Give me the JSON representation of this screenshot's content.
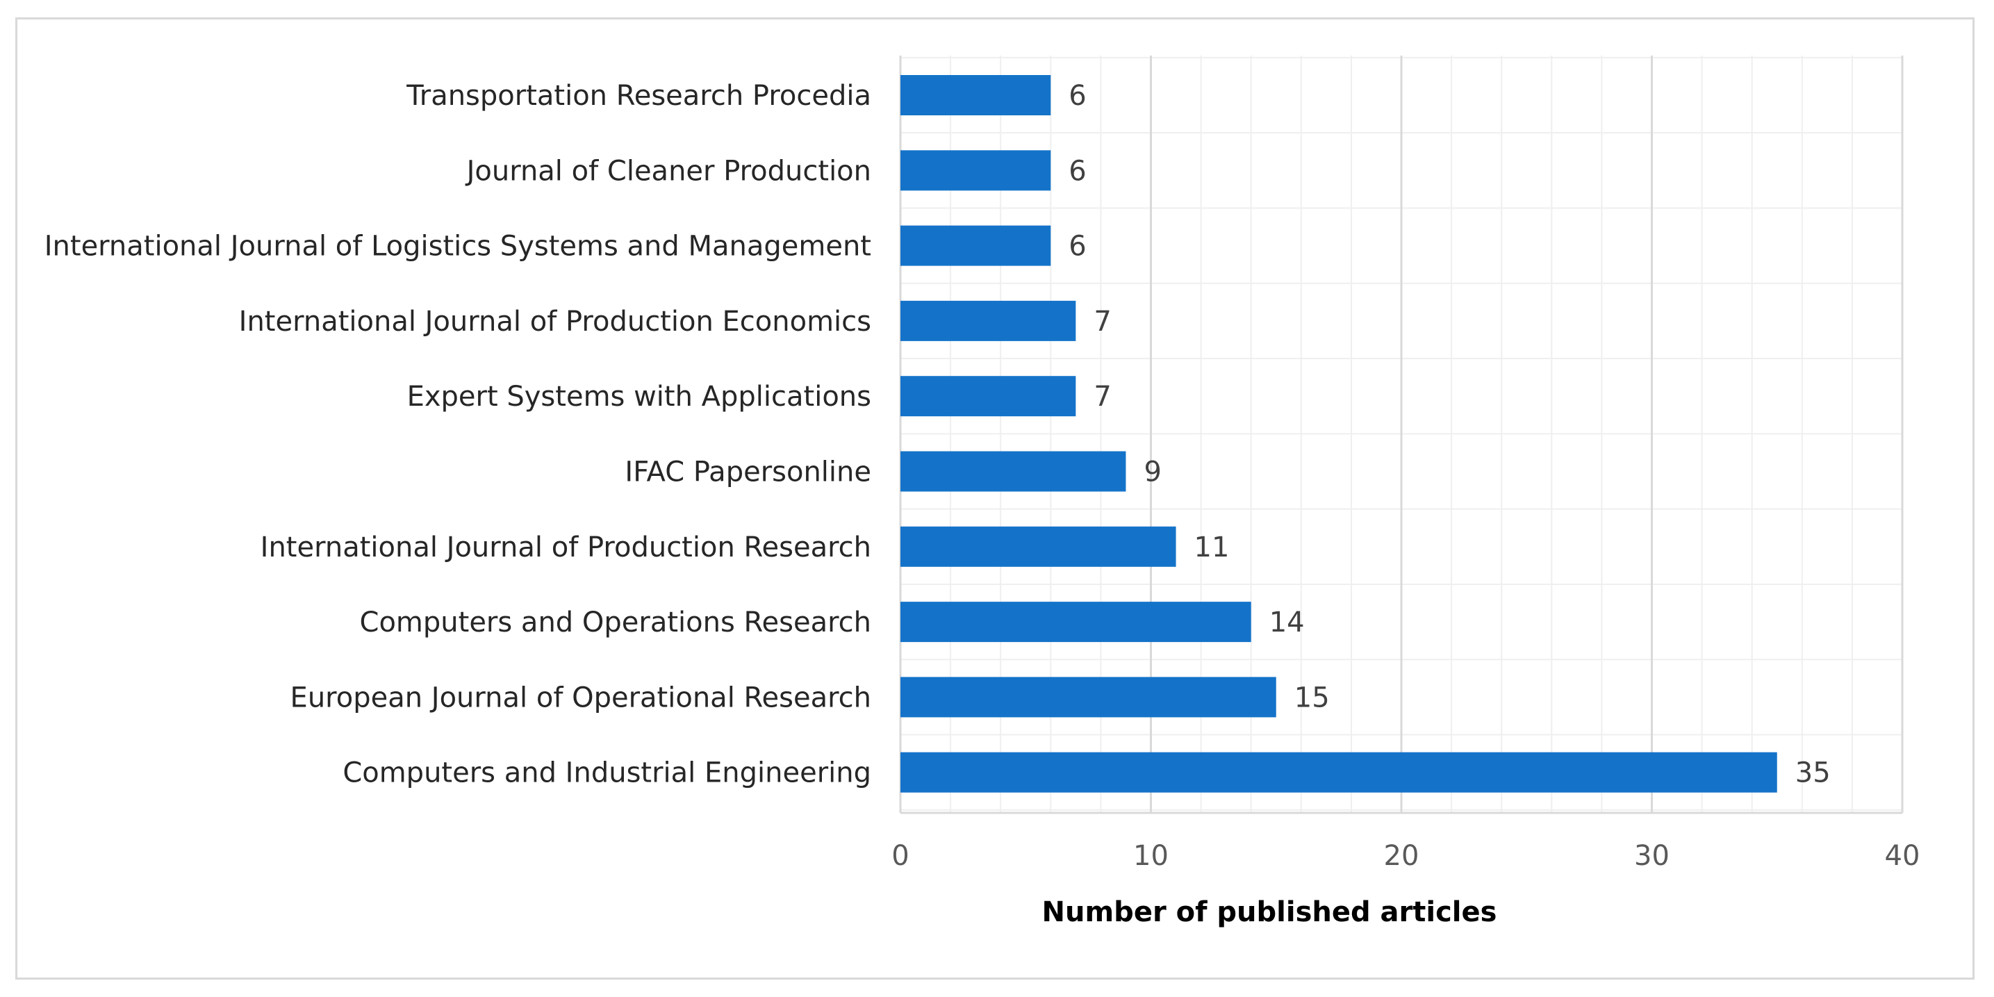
{
  "chart_data": {
    "type": "bar",
    "orientation": "horizontal",
    "categories": [
      "Transportation Research Procedia",
      "Journal of Cleaner Production",
      "International Journal of Logistics Systems and Management",
      "International Journal of Production Economics",
      "Expert Systems with Applications",
      "IFAC Papersonline",
      "International Journal of Production Research",
      "Computers and Operations Research",
      "European Journal of Operational Research",
      "Computers and Industrial Engineering"
    ],
    "values": [
      6,
      6,
      6,
      7,
      7,
      9,
      11,
      14,
      15,
      35
    ],
    "title": "",
    "xlabel": "Number of published articles",
    "ylabel": "",
    "xlim": [
      0,
      40
    ],
    "x_ticks": [
      0,
      10,
      20,
      30,
      40
    ],
    "x_minor_step": 2,
    "grid": true,
    "legend": "none",
    "bar_color": "#1473c9",
    "major_grid_color": "#d9d9d9",
    "minor_grid_color": "#efefef"
  }
}
